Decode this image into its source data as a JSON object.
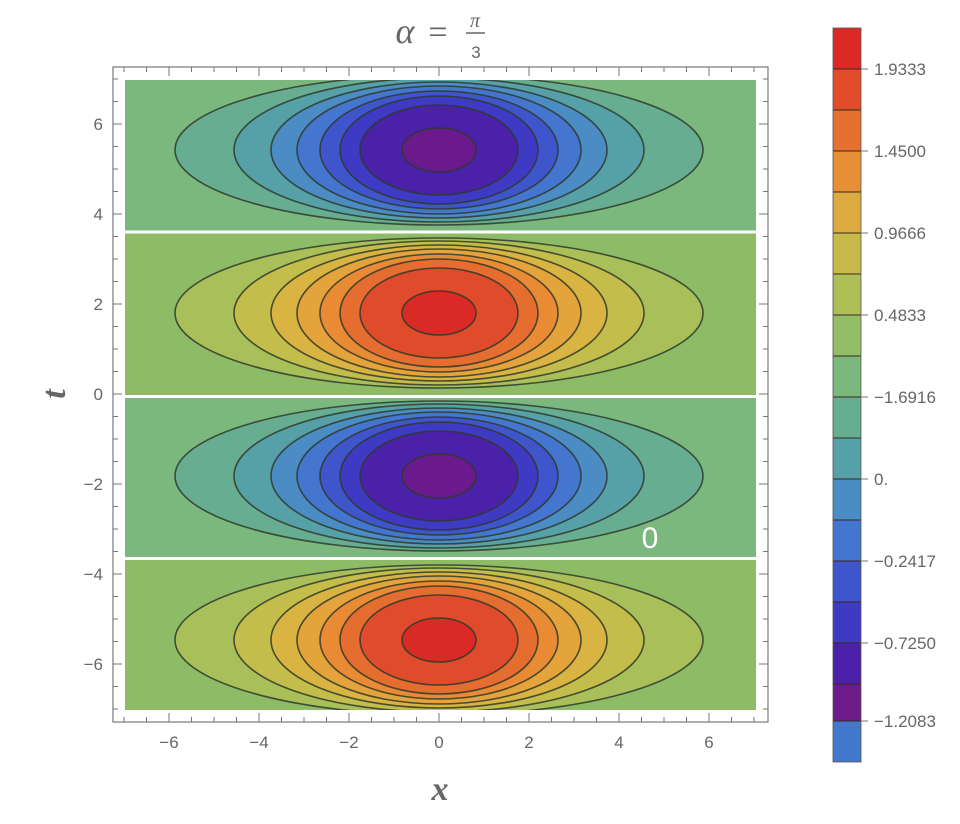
{
  "chart_data": {
    "type": "contour",
    "title": "α = π/3",
    "title_parts": {
      "lhs": "α",
      "eq": "=",
      "num": "π",
      "den": "3"
    },
    "xlabel": "x",
    "ylabel": "t",
    "xlim": [
      -7,
      7
    ],
    "ylim": [
      -7,
      7
    ],
    "x_ticks": [
      -6,
      -4,
      -2,
      0,
      2,
      4,
      6
    ],
    "y_ticks": [
      6,
      4,
      2,
      0,
      -2,
      -4,
      -6
    ],
    "x_tick_labels": [
      "−6",
      "−4",
      "−2",
      "0",
      "2",
      "4",
      "6"
    ],
    "y_tick_labels": [
      "6",
      "4",
      "2",
      "0",
      "−2",
      "−4",
      "−6"
    ],
    "grid": false,
    "contour_label": "0",
    "bands": [
      {
        "t_range": [
          3.6,
          7
        ],
        "center": [
          0,
          5.4
        ],
        "kind": "trough",
        "outer_color": "#7bb87d"
      },
      {
        "t_range": [
          0,
          3.6
        ],
        "center": [
          0,
          1.8
        ],
        "kind": "peak",
        "outer_color": "#8dbb66"
      },
      {
        "t_range": [
          -3.6,
          0
        ],
        "center": [
          0,
          -1.8
        ],
        "kind": "trough",
        "outer_color": "#7bb87d"
      },
      {
        "t_range": [
          -7,
          -3.6
        ],
        "center": [
          0,
          -5.4
        ],
        "kind": "peak",
        "outer_color": "#8dbb66"
      }
    ],
    "zero_lines_t": [
      3.6,
      0,
      -3.6
    ],
    "peak_levels_colors": [
      "#a9c05a",
      "#c4bc4b",
      "#d9b443",
      "#e5a33c",
      "#e98a35",
      "#e66d30",
      "#e04c2b",
      "#da2a26"
    ],
    "trough_levels_colors": [
      "#67ad92",
      "#56a0a8",
      "#4a8cc3",
      "#4476cf",
      "#3f55cc",
      "#3e3ac4",
      "#4a21a8",
      "#6a1a8c"
    ],
    "legend": {
      "type": "colorbar",
      "position": "right",
      "ticks": [
        "1.9333",
        "1.4500",
        "0.9666",
        "0.4833",
        "−1.6916",
        "0.",
        "−0.2417",
        "−0.7250",
        "−1.2083"
      ],
      "colors": [
        "#db2a26",
        "#e14c2b",
        "#e6702f",
        "#e68f37",
        "#dcaa3e",
        "#c8ba4a",
        "#aebf58",
        "#93be67",
        "#7bb87d",
        "#67ad92",
        "#56a0a8",
        "#4a8cc3",
        "#4476cf",
        "#3f55cc",
        "#3e3ac4",
        "#4a21a8",
        "#6e1b8a",
        "#4478cc"
      ]
    }
  }
}
